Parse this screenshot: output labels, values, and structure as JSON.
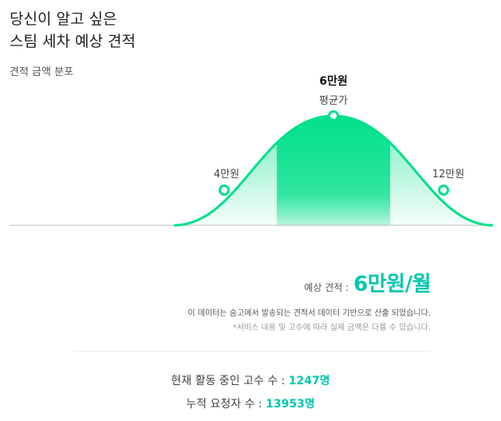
{
  "header": {
    "title_line1": "당신이 알고 싶은",
    "title_line2": "스팀 세차 예상 견적"
  },
  "distribution": {
    "subtitle": "견적 금액 분포",
    "average_price": "6만원",
    "average_caption": "평균가",
    "low_price": "4만원",
    "high_price": "12만원"
  },
  "estimate": {
    "label": "예상 견적 :",
    "value": "6만원/월",
    "note": "이 데이터는 숨고에서 발송되는 견적서 데이터 기반으로 산출 되었습니다.",
    "disclaimer": "*서비스 내용 및 고수에 따라 실제 금액은 다를 수 있습니다."
  },
  "stats": {
    "active_pros_label": "현재 활동 중인 고수 수 :",
    "active_pros_value": "1247명",
    "requests_label": "누적 요청자 수 :",
    "requests_value": "13953명"
  },
  "colors": {
    "accent": "#00c7ae",
    "curve": "#00e08a"
  }
}
